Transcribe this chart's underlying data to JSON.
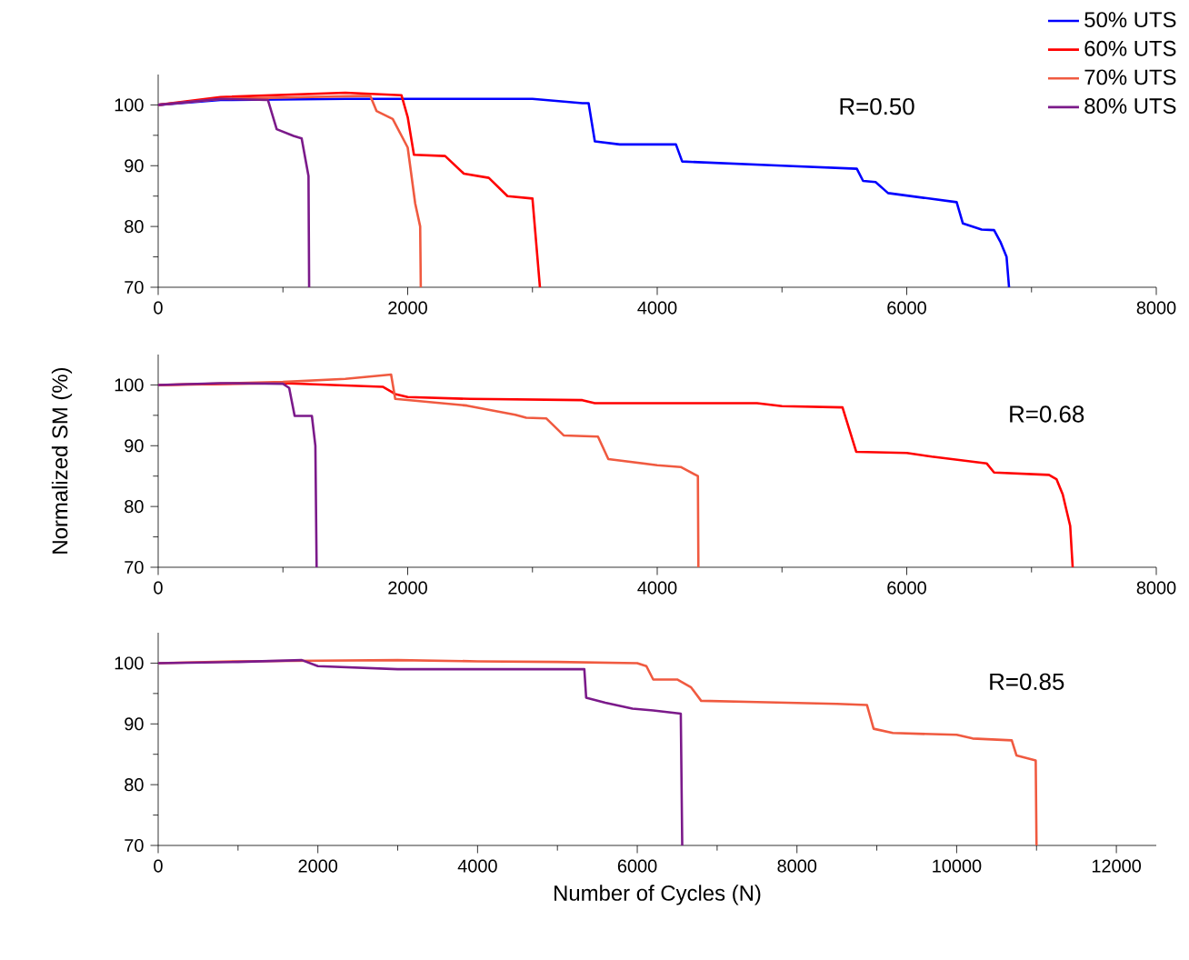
{
  "chart_data": [
    {
      "type": "line",
      "legend": "top right",
      "annotations": [
        "R=0.50"
      ],
      "xlim": [
        0,
        8000
      ],
      "xticks": [
        0,
        2000,
        4000,
        6000,
        8000
      ],
      "ylim": [
        70,
        105
      ],
      "yticks": [
        70,
        80,
        90,
        100
      ],
      "series": [
        {
          "name": "50% UTS",
          "color": "#0000ff",
          "x": [
            0,
            500,
            1500,
            3000,
            3400,
            3450,
            3500,
            3700,
            4150,
            4200,
            5000,
            5600,
            5650,
            5750,
            5850,
            6400,
            6450,
            6600,
            6700,
            6750,
            6800,
            6820
          ],
          "values": [
            100,
            100.8,
            101,
            101,
            100.3,
            100.3,
            94,
            93.5,
            93.5,
            90.7,
            90,
            89.5,
            87.5,
            87.3,
            85.5,
            84,
            80.5,
            79.5,
            79.4,
            77.5,
            75,
            70
          ]
        },
        {
          "name": "60% UTS",
          "color": "#ff0000",
          "x": [
            0,
            500,
            1500,
            1950,
            2000,
            2050,
            2300,
            2450,
            2650,
            2800,
            3000,
            3060
          ],
          "values": [
            100,
            101.3,
            102,
            101.6,
            98,
            91.8,
            91.6,
            88.7,
            88,
            85,
            84.6,
            70
          ]
        },
        {
          "name": "70% UTS",
          "color": "#f05a40",
          "x": [
            0,
            500,
            1700,
            1750,
            1880,
            2000,
            2060,
            2100,
            2105
          ],
          "values": [
            100,
            101,
            101.5,
            99,
            97.7,
            93,
            83.8,
            80,
            70
          ]
        },
        {
          "name": "80% UTS",
          "color": "#7b1a8a",
          "x": [
            0,
            500,
            880,
            950,
            1085,
            1150,
            1205,
            1210
          ],
          "values": [
            100,
            101,
            100.8,
            96,
            94.9,
            94.5,
            88.3,
            70
          ]
        }
      ]
    },
    {
      "type": "line",
      "annotations": [
        "R=0.68"
      ],
      "ylabel": "Normalized SM (%)",
      "xlim": [
        0,
        8000
      ],
      "xticks": [
        0,
        2000,
        4000,
        6000,
        8000
      ],
      "ylim": [
        70,
        105
      ],
      "yticks": [
        70,
        80,
        90,
        100
      ],
      "series": [
        {
          "color": "#ff0000",
          "x": [
            0,
            1000,
            1800,
            1900,
            2000,
            2500,
            3400,
            3500,
            4800,
            5000,
            5485,
            5595,
            6000,
            6200,
            6640,
            6700,
            7140,
            7200,
            7250,
            7310,
            7330
          ],
          "values": [
            100,
            100.3,
            99.7,
            98.5,
            98,
            97.7,
            97.5,
            97,
            97,
            96.5,
            96.3,
            89,
            88.8,
            88.2,
            87.1,
            85.6,
            85.2,
            84.5,
            82,
            76.8,
            70
          ]
        },
        {
          "color": "#f05a40",
          "x": [
            0,
            1000,
            1500,
            1867,
            1900,
            2475,
            2862,
            2950,
            3110,
            3250,
            3525,
            3608,
            4000,
            4188,
            4326,
            4330
          ],
          "values": [
            100,
            100.5,
            101,
            101.7,
            97.7,
            96.6,
            95.1,
            94.6,
            94.5,
            91.7,
            91.5,
            87.8,
            86.8,
            86.5,
            85,
            70
          ]
        },
        {
          "color": "#7b1a8a",
          "x": [
            0,
            500,
            1000,
            1050,
            1094,
            1232,
            1260,
            1270
          ],
          "values": [
            100,
            100.3,
            100.2,
            99.5,
            94.9,
            94.9,
            90,
            70
          ]
        }
      ]
    },
    {
      "type": "line",
      "annotations": [
        "R=0.85"
      ],
      "xlabel": "Number of Cycles (N)",
      "xlim": [
        0,
        12500
      ],
      "xticks": [
        0,
        2000,
        4000,
        6000,
        8000,
        10000,
        12000
      ],
      "ylim": [
        70,
        105
      ],
      "yticks": [
        70,
        80,
        90,
        100
      ],
      "series": [
        {
          "color": "#f05a40",
          "x": [
            0,
            1000,
            2000,
            3000,
            4000,
            5000,
            6000,
            6114,
            6200,
            6500,
            6675,
            6800,
            7500,
            8500,
            8877,
            8960,
            9200,
            10000,
            10200,
            10690,
            10750,
            10990,
            11000
          ],
          "values": [
            100,
            100.3,
            100.4,
            100.5,
            100.3,
            100.2,
            100,
            99.5,
            97.3,
            97.3,
            96,
            93.8,
            93.6,
            93.3,
            93.1,
            89.2,
            88.5,
            88.2,
            87.6,
            87.3,
            84.8,
            84,
            70
          ]
        },
        {
          "color": "#7b1a8a",
          "x": [
            0,
            1000,
            1800,
            2000,
            3000,
            4000,
            5000,
            5337,
            5360,
            5600,
            5940,
            6200,
            6545,
            6563
          ],
          "values": [
            100,
            100.2,
            100.5,
            99.5,
            99,
            99,
            99,
            99,
            94.3,
            93.5,
            92.5,
            92.2,
            91.7,
            70
          ]
        }
      ]
    }
  ]
}
